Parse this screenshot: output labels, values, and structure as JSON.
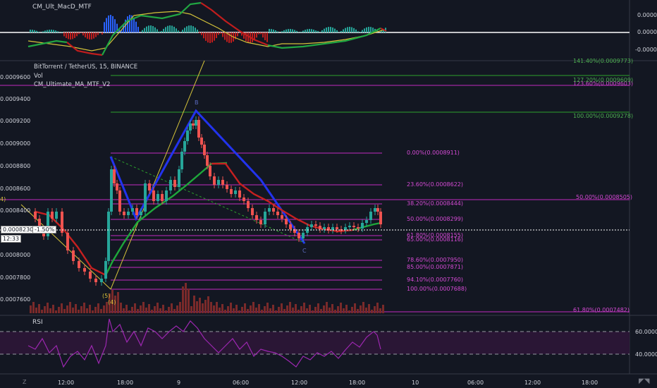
{
  "panes": {
    "macd": {
      "title": "CM_Ult_MacD_MTF",
      "axis": [
        "0.0000",
        "0.0000",
        "-0.0000"
      ]
    },
    "main": {
      "symbol_line": "BitTorrent / TetherUS, 15, BINANCE",
      "study_vol": "Vol",
      "study_ma": "CM_Ultimate_MA_MTF_V2",
      "price_axis": [
        "0.0009600",
        "0.0009400",
        "0.0009200",
        "0.0009000",
        "0.0008800",
        "0.0008600",
        "0.0008400",
        "0.0008000",
        "0.0007800",
        "0.0007600"
      ],
      "current_price": "0.0008230",
      "change": "-1.50%",
      "countdown": "12:33"
    },
    "rsi": {
      "title": "RSI",
      "axis": [
        "60.0000",
        "40.0000"
      ]
    }
  },
  "time_axis": [
    "12:00",
    "18:00",
    "9",
    "06:00",
    "12:00",
    "18:00",
    "10",
    "06:00",
    "12:00",
    "18:00"
  ],
  "fib_left": [
    "0.00%(0.0008911)",
    "23.60%(0.0008622)",
    "38.20%(0.0008444)",
    "50.00%(0.0008299)",
    "61.80%(0.0008155)",
    "65.00%(0.0008116)",
    "78.60%(0.0007950)",
    "85.00%(0.0007871)",
    "94.10%(0.0007760)",
    "100.00%(0.0007688)"
  ],
  "fib_right_magenta": [
    "123.60%(0.0009603)",
    "50.00%(0.0008505)",
    "61.80%(0.0007482)"
  ],
  "fib_right_green": [
    "141.40%(0.0009773)",
    "127.20%(0.0009609)",
    "100.00%(0.0009278)"
  ],
  "pattern_labels": [
    "B",
    "C",
    "(4)",
    "(5)",
    "4)"
  ],
  "corner_icons": [
    "Z",
    "tv-logo-icon"
  ],
  "colors": {
    "bg": "#131722",
    "magenta": "#c02bc0",
    "green": "#2ca02c",
    "blue": "#2233ee",
    "red": "#d32f2f",
    "rsi": "#9c27b0"
  }
}
